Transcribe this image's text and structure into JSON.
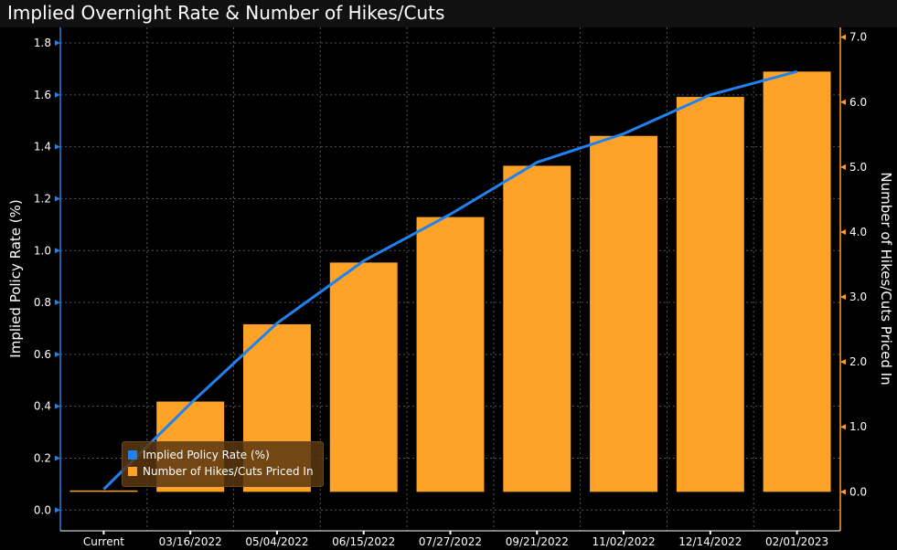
{
  "title": "Implied Overnight Rate & Number of Hikes/Cuts",
  "chart_data": {
    "type": "bar",
    "categories": [
      "Current",
      "03/16/2022",
      "05/04/2022",
      "06/15/2022",
      "07/27/2022",
      "09/21/2022",
      "11/02/2022",
      "12/14/2022",
      "02/01/2023"
    ],
    "series": [
      {
        "name": "Number of Hikes/Cuts Priced In",
        "type": "bar",
        "axis": "right",
        "color": "#ffa228",
        "values": [
          0.0,
          1.39,
          2.58,
          3.53,
          4.23,
          5.02,
          5.48,
          6.08,
          6.47
        ]
      },
      {
        "name": "Implied Policy Rate (%)",
        "type": "line",
        "axis": "left",
        "color": "#1f82f0",
        "values": [
          0.08,
          0.41,
          0.72,
          0.96,
          1.14,
          1.34,
          1.45,
          1.6,
          1.69
        ]
      }
    ],
    "ylabel": "Implied Policy Rate (%)",
    "y2label": "Number of Hikes/Cuts Priced In",
    "ylim": [
      -0.08,
      1.86
    ],
    "y2lim": [
      -0.6,
      7.15
    ],
    "yticks": [
      "0.0",
      "0.2",
      "0.4",
      "0.6",
      "0.8",
      "1.0",
      "1.2",
      "1.4",
      "1.6",
      "1.8"
    ],
    "y2ticks": [
      "0.0",
      "1.0",
      "2.0",
      "3.0",
      "4.0",
      "5.0",
      "6.0",
      "7.0"
    ],
    "grid": true,
    "legend": "bottom-left"
  }
}
